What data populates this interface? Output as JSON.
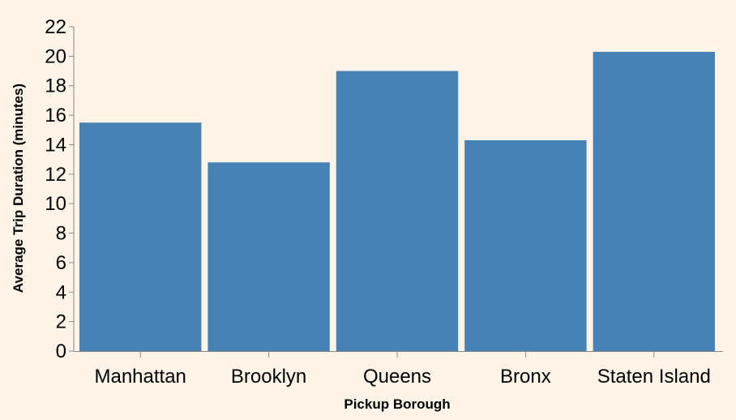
{
  "chart_data": {
    "type": "bar",
    "xlabel": "Pickup Borough",
    "ylabel": "Average Trip Duration (minutes)",
    "categories": [
      "Manhattan",
      "Brooklyn",
      "Queens",
      "Bronx",
      "Staten Island"
    ],
    "values": [
      15.5,
      12.8,
      19.0,
      14.3,
      20.3
    ],
    "ylim": [
      0,
      22
    ],
    "yticks": [
      0,
      2,
      4,
      6,
      8,
      10,
      12,
      14,
      16,
      18,
      20,
      22
    ],
    "grid": false,
    "legend": "none",
    "colors": {
      "bar": "#4682b4",
      "axis": "#888888",
      "background": "#fdf3e6"
    }
  }
}
